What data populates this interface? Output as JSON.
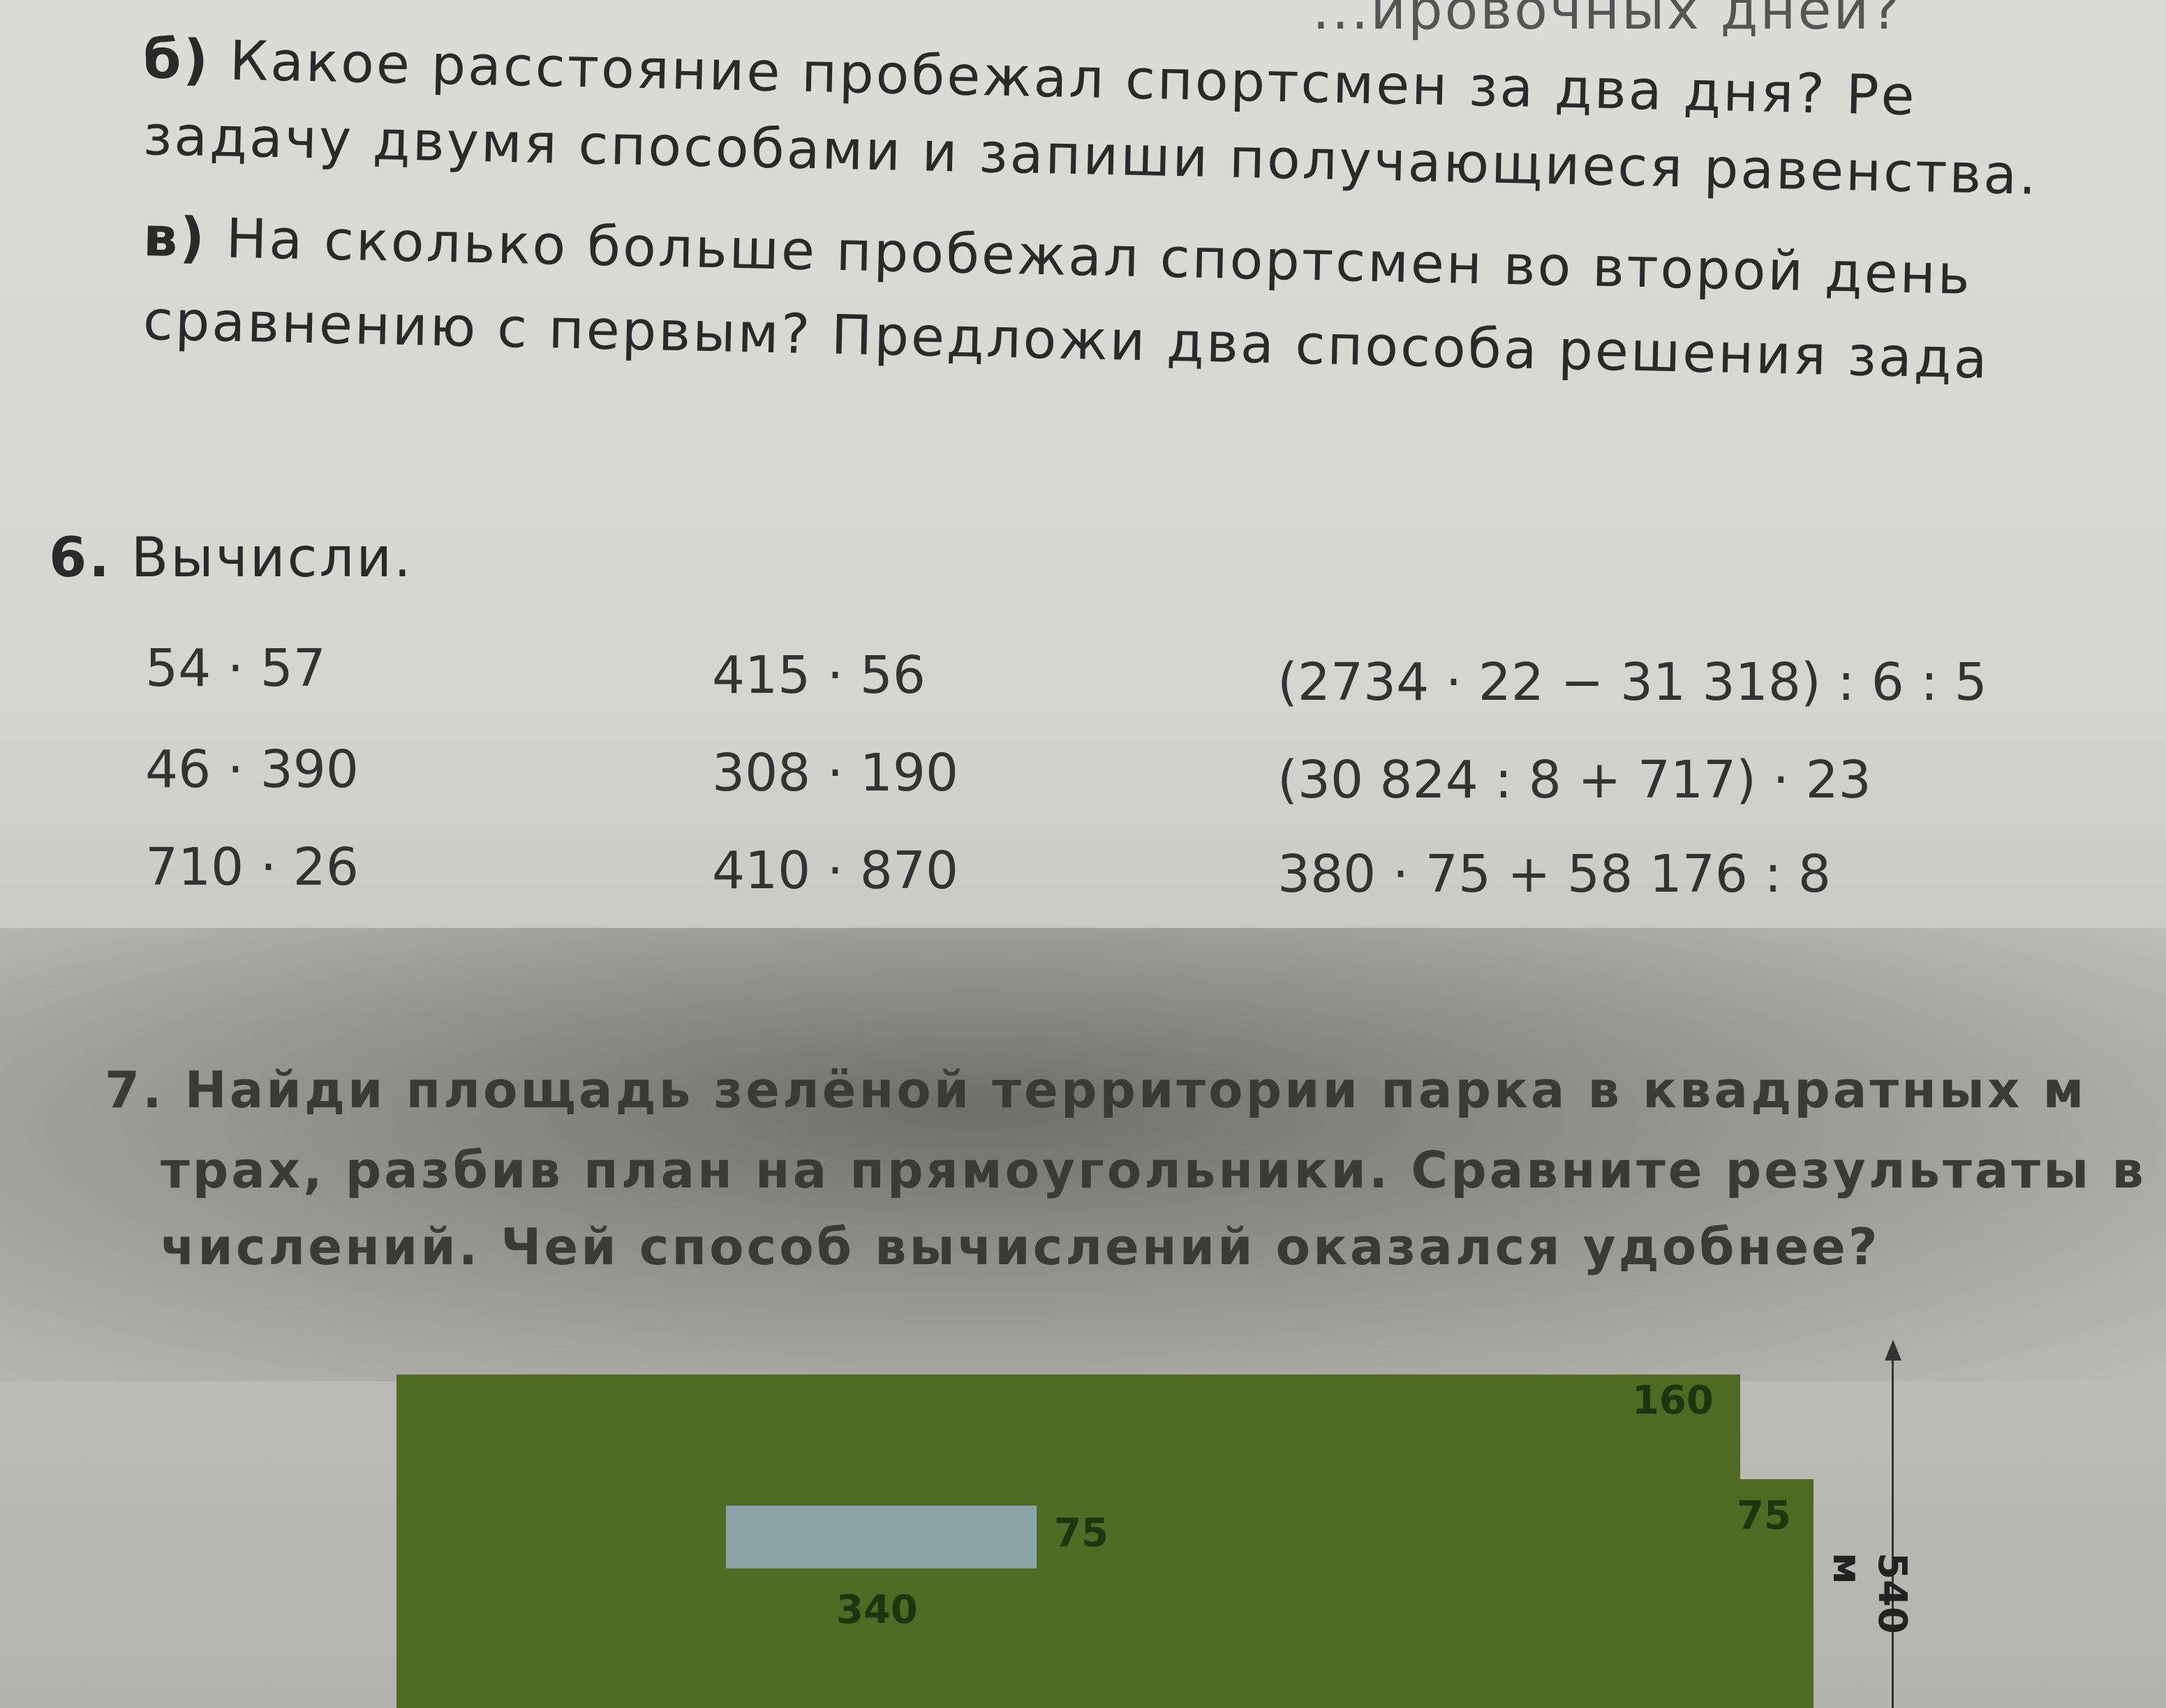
{
  "top_fragment": "...ировочных дней?",
  "task5": {
    "b_marker": "б)",
    "b_line1": "Какое расстояние пробежал спортсмен за два дня? Ре",
    "b_line2": "задачу двумя способами и запиши получающиеся равенства.",
    "v_marker": "в)",
    "v_line1": "На сколько больше пробежал спортсмен во второй день",
    "v_line2": "сравнению с первым? Предложи два способа решения зада"
  },
  "task6": {
    "number": "6.",
    "title": "Вычисли.",
    "columns": [
      [
        "54 · 57",
        "46 · 390",
        "710 · 26"
      ],
      [
        "415 · 56",
        "308 · 190",
        "410 · 870"
      ],
      [
        "(2734 · 22 − 31 318) : 6 : 5",
        "(30 824 : 8 + 717) · 23",
        "380 · 75 + 58 176 : 8"
      ]
    ]
  },
  "task7": {
    "number": "7.",
    "line1": "Найди площадь зелёной территории парка в квадратных м",
    "line2": "трах, разбив план на прямоугольники. Сравните результаты в",
    "line3": "числений. Чей способ вычислений оказался удобнее?"
  },
  "plan": {
    "labels": {
      "top_right": "160",
      "pond_height": "75",
      "right_step": "75",
      "pond_width": "340",
      "height": "540 м"
    },
    "colors": {
      "green": "#4f6a22",
      "pond": "#8aa6a8"
    }
  }
}
